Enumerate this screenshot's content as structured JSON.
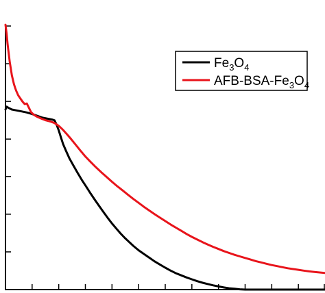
{
  "chart_data": {
    "type": "line",
    "title": "",
    "xlabel": "",
    "ylabel": "",
    "xlim": [
      0,
      300
    ],
    "ylim": [
      0,
      100
    ],
    "x_ticks": [
      0,
      25,
      50,
      75,
      100,
      125,
      150,
      175,
      200,
      225,
      250,
      275,
      300
    ],
    "y_ticks": [
      0,
      14.3,
      28.6,
      42.9,
      57.1,
      71.4,
      85.7,
      100
    ],
    "grid": false,
    "legend_position": "top-right",
    "series": [
      {
        "name": "Fe3O4",
        "legend_label": {
          "base1": "Fe",
          "sub1": "3",
          "base2": "O",
          "sub2": "4",
          "base3": "",
          "sub3": ""
        },
        "color": "#000000",
        "x": [
          0,
          1,
          3,
          6,
          10,
          15,
          20,
          25,
          30,
          35,
          40,
          44,
          46,
          48,
          50,
          52,
          54,
          57,
          60,
          64,
          68,
          72,
          76,
          80,
          84,
          88,
          92,
          96,
          100,
          104,
          108,
          112,
          116,
          120,
          125,
          130,
          135,
          140,
          145,
          150,
          155,
          160,
          165,
          170,
          175,
          180,
          185,
          190,
          195,
          200,
          205,
          210,
          215,
          220,
          225,
          230,
          235,
          240,
          245,
          250,
          255,
          260,
          265,
          270,
          275,
          280,
          285,
          290,
          295,
          300
        ],
        "y": [
          68.3,
          69.4,
          68.9,
          68.3,
          68.0,
          67.6,
          67.2,
          66.6,
          65.9,
          65.2,
          64.8,
          64.5,
          64.2,
          62.5,
          60.4,
          57.8,
          55.3,
          52.5,
          49.8,
          46.9,
          44.1,
          41.4,
          38.9,
          36.4,
          34.0,
          31.7,
          29.4,
          27.2,
          25.1,
          23.2,
          21.3,
          19.6,
          18.1,
          16.6,
          14.9,
          13.5,
          12.1,
          10.7,
          9.5,
          8.3,
          7.2,
          6.2,
          5.4,
          4.6,
          3.9,
          3.2,
          2.6,
          2.1,
          1.6,
          1.2,
          0.8,
          0.5,
          0.3,
          0.1,
          -0.1,
          -0.2,
          -0.3,
          -0.4,
          -0.5,
          -0.6,
          -0.7,
          -0.8,
          -0.9,
          -0.9,
          -1.0,
          -1.0,
          -1.0,
          -1.0,
          -1.0,
          -1.0
        ]
      },
      {
        "name": "AFB-BSA-Fe3O4",
        "legend_label": {
          "base1": "AFB-BSA-Fe",
          "sub1": "3",
          "base2": "O",
          "sub2": "4",
          "base3": "",
          "sub3": ""
        },
        "color": "#e8141b",
        "x": [
          0,
          1,
          2,
          3,
          4,
          5,
          6,
          7,
          8,
          9,
          10,
          12,
          14,
          16,
          18,
          20,
          22,
          24,
          27,
          30,
          34,
          38,
          42,
          46,
          50,
          54,
          58,
          62,
          66,
          70,
          75,
          80,
          85,
          90,
          95,
          100,
          105,
          110,
          115,
          120,
          125,
          130,
          135,
          140,
          145,
          150,
          155,
          160,
          165,
          170,
          175,
          180,
          185,
          190,
          195,
          200,
          205,
          210,
          215,
          220,
          225,
          230,
          235,
          240,
          245,
          250,
          255,
          260,
          265,
          270,
          275,
          280,
          285,
          290,
          295,
          300
        ],
        "y": [
          100.5,
          97.2,
          93.1,
          89.6,
          86.4,
          83.8,
          81.3,
          79.5,
          77.9,
          76.6,
          75.5,
          73.7,
          72.5,
          71.3,
          70.4,
          70.6,
          69.0,
          67.3,
          66.2,
          65.5,
          64.8,
          64.2,
          63.8,
          63.2,
          62.1,
          60.6,
          58.8,
          56.9,
          54.9,
          52.9,
          50.5,
          48.4,
          46.4,
          44.5,
          42.7,
          40.9,
          39.2,
          37.6,
          36.0,
          34.4,
          32.9,
          31.4,
          30.0,
          28.6,
          27.3,
          26.0,
          24.7,
          23.5,
          22.3,
          21.1,
          20.0,
          19.0,
          18.0,
          17.1,
          16.2,
          15.4,
          14.6,
          13.9,
          13.2,
          12.6,
          12.0,
          11.4,
          10.8,
          10.3,
          9.8,
          9.3,
          8.9,
          8.5,
          8.1,
          7.8,
          7.5,
          7.2,
          6.9,
          6.7,
          6.5,
          6.3
        ]
      }
    ]
  }
}
